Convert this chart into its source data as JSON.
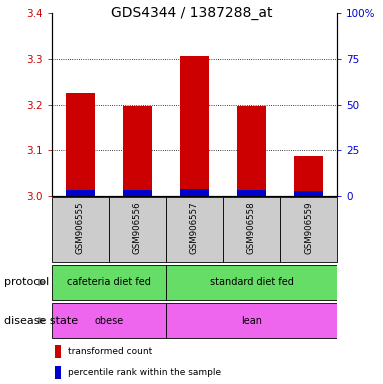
{
  "title": "GDS4344 / 1387288_at",
  "samples": [
    "GSM906555",
    "GSM906556",
    "GSM906557",
    "GSM906558",
    "GSM906559"
  ],
  "red_values": [
    3.225,
    3.197,
    3.307,
    3.197,
    3.087
  ],
  "blue_values": [
    3.012,
    3.012,
    3.016,
    3.012,
    3.01
  ],
  "ymin": 3.0,
  "ymax": 3.4,
  "yticks": [
    3.0,
    3.1,
    3.2,
    3.3,
    3.4
  ],
  "right_yticks": [
    0,
    25,
    50,
    75,
    100
  ],
  "right_ytick_labels": [
    "0",
    "25",
    "50",
    "75",
    "100%"
  ],
  "protocol_labels": [
    "cafeteria diet fed",
    "standard diet fed"
  ],
  "protocol_color": "#66DD66",
  "disease_labels": [
    "obese",
    "lean"
  ],
  "disease_color": "#EE66EE",
  "sample_bg_color": "#CCCCCC",
  "legend_red": "transformed count",
  "legend_blue": "percentile rank within the sample",
  "red_color": "#CC0000",
  "blue_color": "#0000CC",
  "arrow_color": "#888888",
  "title_fontsize": 10,
  "tick_fontsize": 7.5,
  "label_fontsize": 7,
  "row_label_fontsize": 8
}
